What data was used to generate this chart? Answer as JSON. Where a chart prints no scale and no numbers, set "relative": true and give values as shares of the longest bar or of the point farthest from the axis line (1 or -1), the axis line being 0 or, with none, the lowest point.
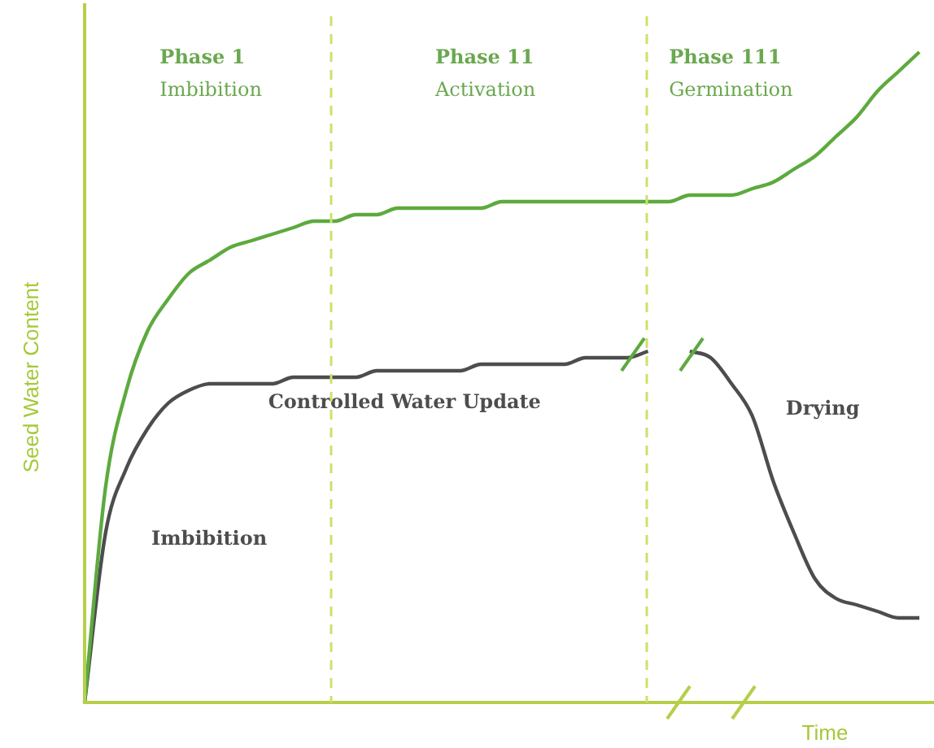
{
  "chart_data": {
    "type": "line",
    "relative": true,
    "xlabel": "Time",
    "ylabel": "Seed Water Content",
    "categories": [
      null,
      null,
      null,
      null,
      null,
      null,
      null,
      null,
      null,
      null,
      null,
      null,
      null,
      null,
      null,
      null,
      null,
      null,
      null,
      null,
      null,
      null,
      null,
      null,
      null,
      null,
      null,
      null,
      null,
      null,
      null,
      null,
      null,
      null,
      null,
      null,
      null,
      null,
      null,
      null,
      null
    ],
    "series": [
      {
        "color": "#5daa3e",
        "values": [
          0,
          0.33,
          0.48,
          0.57,
          0.62,
          0.66,
          0.68,
          0.7,
          0.71,
          0.72,
          0.73,
          0.74,
          0.74,
          0.75,
          0.75,
          0.76,
          0.76,
          0.76,
          0.76,
          0.76,
          0.77,
          0.77,
          0.77,
          0.77,
          0.77,
          0.77,
          0.77,
          0.77,
          0.77,
          0.78,
          0.78,
          0.78,
          0.79,
          0.8,
          0.82,
          0.84,
          0.87,
          0.9,
          0.94,
          0.97,
          1
        ]
      },
      {
        "color": "#4d4d4d",
        "values": [
          0,
          0.26,
          0.36,
          0.42,
          0.46,
          0.48,
          0.49,
          0.49,
          0.49,
          0.49,
          0.5,
          0.5,
          0.5,
          0.5,
          0.51,
          0.51,
          0.51,
          0.51,
          0.51,
          0.52,
          0.52,
          0.52,
          0.52,
          0.52,
          0.53,
          0.53,
          0.53,
          0.54,
          null,
          0.54,
          0.53,
          0.49,
          0.44,
          0.34,
          0.26,
          0.19,
          0.16,
          0.15,
          0.14,
          0.13,
          0.13
        ]
      }
    ],
    "annotations": [
      "Phase 1",
      "Imbibition",
      "Phase 11",
      "Activation",
      "Phase 111",
      "Germination",
      "Controlled Water Update",
      "Imbibition",
      "Drying"
    ],
    "legend": false,
    "marker": "none",
    "line_style": "solid"
  }
}
